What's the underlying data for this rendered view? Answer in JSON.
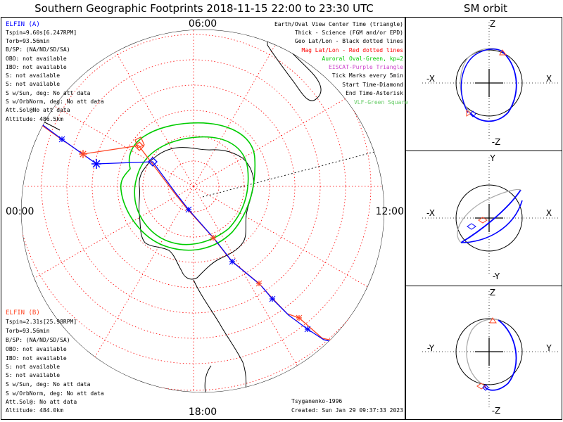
{
  "title": "Southern Geographic Footprints 2018-11-15 22:00 to 23:30 UTC",
  "orbit_title": "SM orbit",
  "clock": {
    "top": "06:00",
    "left": "00:00",
    "right": "12:00",
    "bottom": "18:00"
  },
  "elfin_a": {
    "name": "ELFIN (A)",
    "lines": [
      "Tspin=9.60s[6.247RPM]",
      "Torb=93.56min",
      "B/SP: (NA/ND/SD/SA)",
      "OBO: not available",
      "IBO: not available",
      "S: not available",
      "S: not available",
      "S w/Sun, deg: No att data",
      "S w/OrbNorm, deg: No att data",
      "Att.Sol@No att data",
      "Altitude: 486.5km"
    ]
  },
  "elfin_b": {
    "name": "ELFIN (B)",
    "lines": [
      "Tspin=2.31s[25.98RPM]",
      "Torb=93.56min",
      "B/SP: (NA/ND/SD/SA)",
      "OBO: not available",
      "IBO: not available",
      "S: not available",
      "S: not available",
      "S w/Sun, deg: No att data",
      "S w/OrbNorm, deg: No att data",
      "Att.Sol@: No att data",
      "Altitude: 484.0km"
    ]
  },
  "legend": [
    {
      "text": "Earth/Oval View Center Time (triangle)",
      "color": "#000000"
    },
    {
      "text": "Thick - Science (FGM and/or EPD)",
      "color": "#000000"
    },
    {
      "text": "Geo Lat/Lon - Black dotted lines",
      "color": "#000000"
    },
    {
      "text": "Mag Lat/Lon - Red dotted lines",
      "color": "#ff0000"
    },
    {
      "text": "Auroral Oval-Green, kp=2",
      "color": "#00cc00"
    },
    {
      "text": "EISCAT-Purple Triangle",
      "color": "#cc44cc"
    },
    {
      "text": "Tick Marks every 5min",
      "color": "#000000"
    },
    {
      "text": "Start Time-Diamond",
      "color": "#000000"
    },
    {
      "text": "End Time-Asterisk",
      "color": "#000000"
    },
    {
      "text": "VLF-Green Square",
      "color": "#66cc66"
    }
  ],
  "footer": {
    "model": "Tsyganenko-1996",
    "created": "Created: Sun Jan 29 09:37:33 2023"
  },
  "orbit_panels": [
    {
      "top": "Z",
      "bottom": "-Z",
      "left": "-X",
      "right": "X"
    },
    {
      "top": "Y",
      "bottom": "-Y",
      "left": "-X",
      "right": "X"
    },
    {
      "top": "Z",
      "bottom": "-Z",
      "left": "-Y",
      "right": "Y"
    }
  ],
  "colors": {
    "elfin_a": "#0000ff",
    "elfin_b": "#ff4422",
    "oval": "#00cc00",
    "mag_grid": "#ff0000",
    "geo_grid": "#000000"
  },
  "chart_data": {
    "type": "scatter",
    "projection": "south polar stereographic",
    "series": [
      {
        "name": "ELFIN (A)",
        "lat": [
          -40,
          -47,
          -55,
          -62,
          -70,
          -78,
          -84,
          -82,
          -74,
          -65,
          -57,
          -49,
          -42,
          -36
        ],
        "lon": [
          150,
          145,
          138,
          128,
          110,
          80,
          20,
          -20,
          -35,
          -40,
          -44,
          -48,
          -52,
          -55
        ]
      },
      {
        "name": "ELFIN (B)",
        "lat": [
          -42,
          -49,
          -57,
          -64,
          -72,
          -80,
          -85,
          -83,
          -75,
          -66,
          -58,
          -50,
          -43,
          -37
        ],
        "lon": [
          152,
          147,
          140,
          130,
          112,
          82,
          22,
          -18,
          -34,
          -39,
          -43,
          -47,
          -51,
          -54
        ]
      }
    ]
  }
}
